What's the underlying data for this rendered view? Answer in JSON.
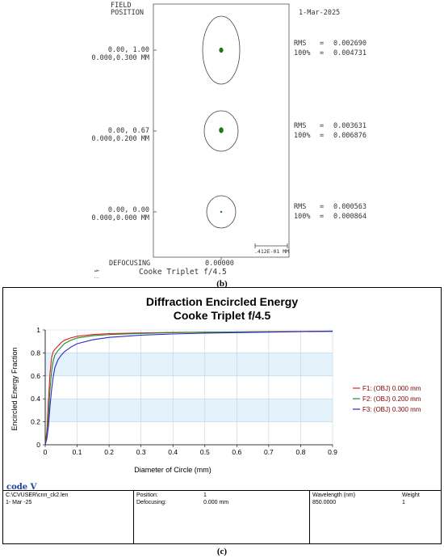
{
  "spot_diagram": {
    "header_field": "FIELD",
    "header_position": "POSITION",
    "date": "1-Mar-2025",
    "fields": [
      {
        "angle": "0.00, 1.00",
        "height": "0.000,0.300 MM",
        "rms_label": "RMS",
        "rms_value": "0.002690",
        "pct_label": "100%",
        "pct_value": "0.004731"
      },
      {
        "angle": "0.00, 0.67",
        "height": "0.000,0.200 MM",
        "rms_label": "RMS",
        "rms_value": "0.003631",
        "pct_label": "100%",
        "pct_value": "0.006876"
      },
      {
        "angle": "0.00, 0.00",
        "height": "0.000,0.000 MM",
        "rms_label": "RMS",
        "rms_value": "0.000563",
        "pct_label": "100%",
        "pct_value": "0.000864"
      }
    ],
    "scale_label": ".412E-01 MM",
    "defocusing_label": "DEFOCUSING",
    "defocusing_value": "0.00000",
    "lens_title": "Cooke Triplet f/4.5",
    "side_marks": "§ ⋮ ⋮"
  },
  "captions": {
    "b": "(b)",
    "c": "(c)"
  },
  "chart_data": {
    "type": "line",
    "title": "Diffraction Encircled Energy",
    "subtitle": "Cooke Triplet f/4.5",
    "xlabel": "Diameter of Circle (mm)",
    "ylabel": "Encircled Energy Fraction",
    "xlim": [
      0,
      0.9
    ],
    "ylim": [
      0,
      1
    ],
    "xticks": [
      "0",
      "0.1",
      "0.2",
      "0.3",
      "0.4",
      "0.5",
      "0.6",
      "0.7",
      "0.8",
      "0.9"
    ],
    "yticks": [
      "0",
      "0.2",
      "0.4",
      "0.6",
      "0.8",
      "1"
    ],
    "grid": true,
    "legend_position": "right",
    "x": [
      0,
      0.005,
      0.01,
      0.015,
      0.02,
      0.025,
      0.03,
      0.04,
      0.05,
      0.06,
      0.08,
      0.1,
      0.15,
      0.2,
      0.3,
      0.4,
      0.5,
      0.6,
      0.7,
      0.8,
      0.9
    ],
    "series": [
      {
        "name": "F1: (OBJ) 0.000 mm",
        "color": "#e02020",
        "values": [
          0,
          0.12,
          0.38,
          0.62,
          0.76,
          0.81,
          0.83,
          0.86,
          0.89,
          0.91,
          0.93,
          0.945,
          0.96,
          0.968,
          0.974,
          0.978,
          0.981,
          0.983,
          0.985,
          0.987,
          0.99
        ]
      },
      {
        "name": "F2: (OBJ) 0.200 mm",
        "color": "#2a8a2a",
        "values": [
          0,
          0.08,
          0.25,
          0.48,
          0.64,
          0.73,
          0.78,
          0.82,
          0.85,
          0.88,
          0.91,
          0.93,
          0.95,
          0.96,
          0.97,
          0.976,
          0.98,
          0.982,
          0.984,
          0.986,
          0.988
        ]
      },
      {
        "name": "F3: (OBJ) 0.300 mm",
        "color": "#2a2ad0",
        "values": [
          0,
          0.05,
          0.16,
          0.33,
          0.48,
          0.59,
          0.67,
          0.74,
          0.78,
          0.81,
          0.85,
          0.88,
          0.915,
          0.935,
          0.955,
          0.965,
          0.972,
          0.977,
          0.981,
          0.985,
          0.988
        ]
      }
    ]
  },
  "footer": {
    "logo": "code V",
    "file": "C:\\CVUSER\\cnn_ck2.len",
    "date": "1- Mar -25",
    "position_label": "Position:",
    "position_value": "1",
    "defocusing_label": "Defocusing:",
    "defocusing_value": "0.000 mm",
    "wavelength_label": "Wavelength (nm)",
    "wavelength_value": "850.0000",
    "weight_label": "Weight",
    "weight_value": "1"
  }
}
